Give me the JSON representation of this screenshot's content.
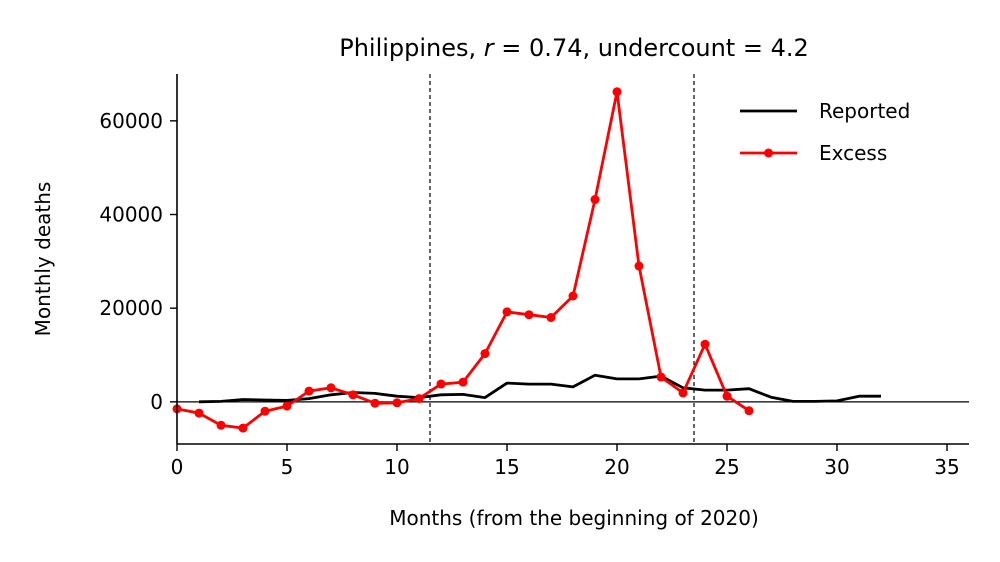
{
  "chart_data": {
    "type": "line",
    "title_prefix": "Philippines, ",
    "title_r_symbol": "r",
    "title_r_value": " = 0.74, undercount = 4.2",
    "xlabel": "Months (from the beginning of 2020)",
    "ylabel": "Monthly deaths",
    "xlim": [
      0,
      36
    ],
    "ylim": [
      -9000,
      70000
    ],
    "xticks": [
      0,
      5,
      10,
      15,
      20,
      25,
      30,
      35
    ],
    "yticks": [
      0,
      20000,
      40000,
      60000
    ],
    "xtick_labels": [
      "0",
      "5",
      "10",
      "15",
      "20",
      "25",
      "30",
      "35"
    ],
    "ytick_labels": [
      "0",
      "20000",
      "40000",
      "60000"
    ],
    "vlines": [
      11.5,
      23.5
    ],
    "hline": 0,
    "legend_position": "top-right",
    "series": [
      {
        "name": "Reported",
        "color": "#000000",
        "markers": false,
        "x": [
          1,
          2,
          3,
          4,
          5,
          6,
          7,
          8,
          9,
          10,
          11,
          12,
          13,
          14,
          15,
          16,
          17,
          18,
          19,
          20,
          21,
          22,
          23,
          24,
          25,
          26,
          27,
          28,
          29,
          30,
          31,
          32
        ],
        "y": [
          0,
          100,
          500,
          400,
          300,
          700,
          1500,
          2000,
          1800,
          1200,
          900,
          1500,
          1600,
          900,
          4000,
          3800,
          3800,
          3200,
          5700,
          4900,
          4900,
          5500,
          3000,
          2500,
          2500,
          2800,
          1000,
          100,
          100,
          200,
          1200,
          1200
        ]
      },
      {
        "name": "Excess",
        "color": "#ff0000",
        "markers": true,
        "x": [
          0,
          1,
          2,
          3,
          4,
          5,
          6,
          7,
          8,
          9,
          10,
          11,
          12,
          13,
          14,
          15,
          16,
          17,
          18,
          19,
          20,
          21,
          22,
          23,
          24,
          25,
          26
        ],
        "y": [
          -1500,
          -2400,
          -5000,
          -5600,
          -2000,
          -900,
          2300,
          3000,
          1500,
          -300,
          -200,
          700,
          3800,
          4200,
          10300,
          19200,
          18600,
          18000,
          22600,
          43200,
          66200,
          29000,
          5300,
          1900,
          12300,
          1200,
          -1900
        ]
      }
    ]
  }
}
